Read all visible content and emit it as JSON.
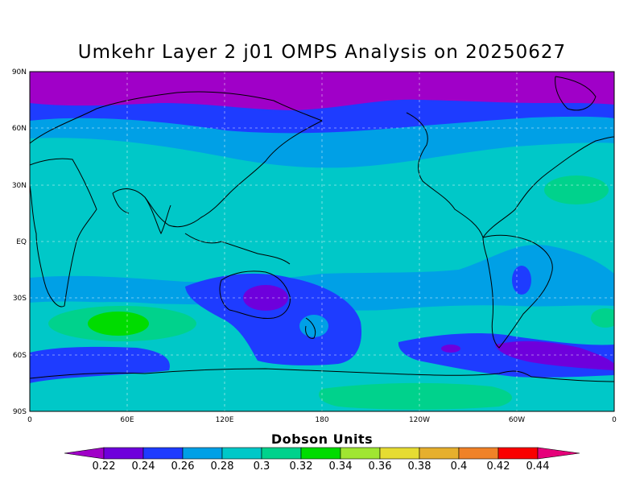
{
  "title": "Umkehr Layer 2 j01 OMPS Analysis on 20250627",
  "map": {
    "lat_ticks": [
      "90N",
      "60N",
      "30N",
      "EQ",
      "30S",
      "60S",
      "90S"
    ],
    "lon_ticks": [
      "0",
      "60E",
      "120E",
      "180",
      "120W",
      "60W",
      "0"
    ],
    "grid": true
  },
  "colorbar": {
    "title": "Dobson Units",
    "levels": [
      "0.22",
      "0.24",
      "0.26",
      "0.28",
      "0.3",
      "0.32",
      "0.34",
      "0.36",
      "0.38",
      "0.4",
      "0.42",
      "0.44"
    ],
    "colors": [
      "#a000c8",
      "#6e00dc",
      "#1e3cff",
      "#00a0e6",
      "#00c8c8",
      "#00d28c",
      "#00dc00",
      "#a0e632",
      "#e6dc32",
      "#e6af2d",
      "#f08228",
      "#fa0000",
      "#e6007a"
    ]
  },
  "chart_data": {
    "type": "heatmap",
    "title": "Umkehr Layer 2 j01 OMPS Analysis on 20250627",
    "units": "Dobson Units",
    "x_ticks": [
      "0",
      "60E",
      "120E",
      "180",
      "120W",
      "60W",
      "0"
    ],
    "y_ticks": [
      "90N",
      "60N",
      "30N",
      "EQ",
      "30S",
      "60S",
      "90S"
    ],
    "color_scale": [
      0.22,
      0.24,
      0.26,
      0.28,
      0.3,
      0.32,
      0.34,
      0.36,
      0.38,
      0.4,
      0.42,
      0.44
    ],
    "latitude_bands": [
      {
        "lat_range": [
          70,
          90
        ],
        "value_range": [
          0.22,
          0.24
        ]
      },
      {
        "lat_range": [
          55,
          70
        ],
        "value_range": [
          0.24,
          0.26
        ]
      },
      {
        "lat_range": [
          35,
          55
        ],
        "value_range": [
          0.26,
          0.28
        ]
      },
      {
        "lat_range": [
          -20,
          35
        ],
        "value_range": [
          0.28,
          0.3
        ]
      },
      {
        "lat_range": [
          -40,
          -20
        ],
        "value_range": [
          0.26,
          0.28
        ]
      },
      {
        "lat_range": [
          -55,
          -40
        ],
        "value_range": [
          0.28,
          0.3
        ]
      },
      {
        "lat_range": [
          -70,
          -55
        ],
        "value_range": [
          0.24,
          0.26
        ]
      },
      {
        "lat_range": [
          -90,
          -70
        ],
        "value_range": [
          0.28,
          0.3
        ]
      }
    ],
    "features": [
      {
        "lon": 48,
        "lat": -43,
        "value_range": [
          0.32,
          0.34
        ]
      },
      {
        "lon": 330,
        "lat": 27,
        "value_range": [
          0.3,
          0.32
        ]
      },
      {
        "lon": 150,
        "lat": -30,
        "value_range": [
          0.22,
          0.24
        ]
      },
      {
        "lon": 300,
        "lat": -68,
        "value_range": [
          0.22,
          0.24
        ]
      }
    ]
  }
}
